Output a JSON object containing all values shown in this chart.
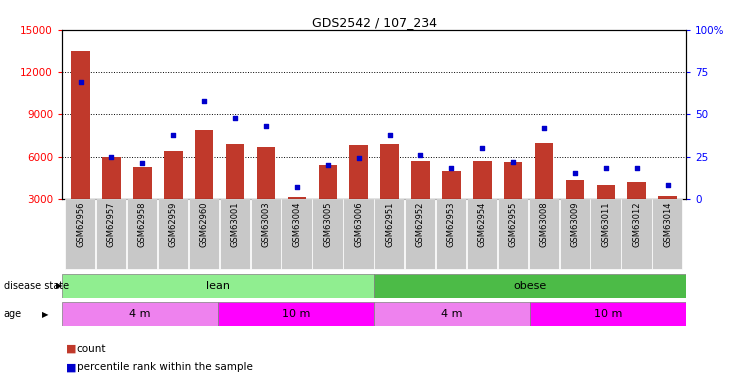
{
  "title": "GDS2542 / 107_234",
  "samples": [
    "GSM62956",
    "GSM62957",
    "GSM62958",
    "GSM62959",
    "GSM62960",
    "GSM63001",
    "GSM63003",
    "GSM63004",
    "GSM63005",
    "GSM63006",
    "GSM62951",
    "GSM62952",
    "GSM62953",
    "GSM62954",
    "GSM62955",
    "GSM63008",
    "GSM63009",
    "GSM63011",
    "GSM63012",
    "GSM63014"
  ],
  "counts": [
    13500,
    5950,
    5250,
    6400,
    7900,
    6900,
    6700,
    3100,
    5400,
    6800,
    6900,
    5700,
    5000,
    5700,
    5600,
    7000,
    4300,
    4000,
    4200,
    3200
  ],
  "percentiles": [
    69,
    25,
    21,
    38,
    58,
    48,
    43,
    7,
    20,
    24,
    38,
    26,
    18,
    30,
    22,
    42,
    15,
    18,
    18,
    8
  ],
  "ylim_left": [
    3000,
    15000
  ],
  "ylim_right": [
    0,
    100
  ],
  "yticks_left": [
    3000,
    6000,
    9000,
    12000,
    15000
  ],
  "yticks_right": [
    0,
    25,
    50,
    75,
    100
  ],
  "disease_groups": [
    {
      "label": "lean",
      "start": 0,
      "end": 10,
      "color": "#90EE90"
    },
    {
      "label": "obese",
      "start": 10,
      "end": 20,
      "color": "#4CBB47"
    }
  ],
  "age_groups": [
    {
      "label": "4 m",
      "start": 0,
      "end": 5,
      "color": "#EE82EE"
    },
    {
      "label": "10 m",
      "start": 5,
      "end": 10,
      "color": "#FF00FF"
    },
    {
      "label": "4 m",
      "start": 10,
      "end": 15,
      "color": "#EE82EE"
    },
    {
      "label": "10 m",
      "start": 15,
      "end": 20,
      "color": "#FF00FF"
    }
  ],
  "bar_color": "#C0392B",
  "dot_color": "#0000CC",
  "bg_color": "#C8C8C8",
  "grid_color": "#000000",
  "legend_items": [
    {
      "label": "count",
      "color": "#C0392B"
    },
    {
      "label": "percentile rank within the sample",
      "color": "#0000CC"
    }
  ]
}
